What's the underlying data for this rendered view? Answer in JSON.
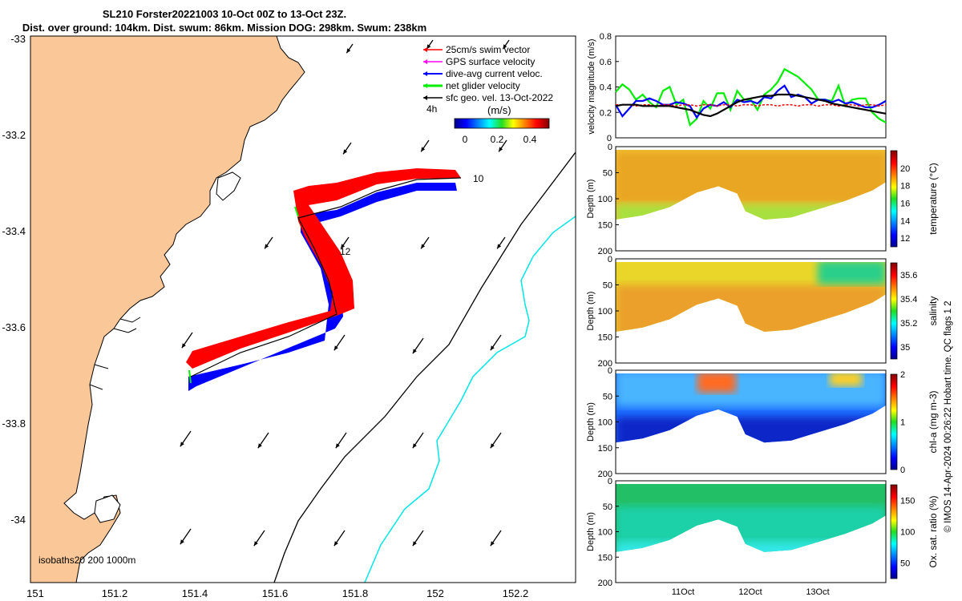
{
  "title": {
    "line1": "SL210 Forster20221003 10-Oct 00Z to 13-Oct 23Z.",
    "line2": "Dist. over ground: 104km. Dist. swum: 86km. Mission DOG: 298km. Swum: 238km"
  },
  "map": {
    "lon_ticks": [
      "151",
      "151.2",
      "151.4",
      "151.6",
      "151.8",
      "152",
      "152.2"
    ],
    "lat_ticks": [
      "-33",
      "-33.2",
      "-33.4",
      "-33.6",
      "-33.8",
      "-34"
    ],
    "legend": [
      {
        "label": "25cm/s swim vector",
        "color": "#ff0000"
      },
      {
        "label": "GPS surface velocity",
        "color": "#ff00ff"
      },
      {
        "label": "dive-avg current veloc.",
        "color": "#0000ff"
      },
      {
        "label": "net glider velocity",
        "color": "#00ee00"
      },
      {
        "label": "sfc geo. vel. 13-Oct-2022",
        "color": "#000000"
      }
    ],
    "time_step": "4h",
    "colorbar_unit": "(m/s)",
    "colorbar_ticks": [
      "0",
      "0.2",
      "0.4"
    ],
    "day_labels": [
      "10",
      "12"
    ],
    "isobath_label": "isobaths20  200  1000m"
  },
  "credit": "© IMOS 14-Apr-2024 00:26:22 Hobart time. QC flags 1  2",
  "colors": {
    "land": "#fac898",
    "track_red": "#ff0000",
    "track_blue": "#0000ff",
    "isobath_200": "#000000",
    "isobath_1000": "#00e5e5"
  },
  "chart_data": [
    {
      "type": "line",
      "ylabel": "velocity magnitude (m/s)",
      "ylim": [
        0,
        0.8
      ],
      "yticks": [
        "0",
        "0.2",
        "0.4",
        "0.6",
        "0.8"
      ],
      "x": [
        0,
        0.1,
        0.2,
        0.3,
        0.4,
        0.5,
        0.6,
        0.7,
        0.8,
        0.9,
        1.0,
        1.1,
        1.2,
        1.3,
        1.4,
        1.5,
        1.6,
        1.7,
        1.8,
        1.9,
        2.0,
        2.1,
        2.2,
        2.3,
        2.4,
        2.5,
        2.6,
        2.7,
        2.8,
        2.9,
        3.0,
        3.1,
        3.2,
        3.3,
        3.4,
        3.5,
        3.6,
        3.7,
        3.8,
        3.9,
        4.0
      ],
      "xlim": [
        0,
        4
      ],
      "series": [
        {
          "name": "net glider velocity",
          "color": "#00ee00",
          "values": [
            0.36,
            0.42,
            0.38,
            0.3,
            0.34,
            0.28,
            0.24,
            0.37,
            0.4,
            0.26,
            0.3,
            0.1,
            0.15,
            0.29,
            0.23,
            0.35,
            0.35,
            0.22,
            0.37,
            0.3,
            0.3,
            0.22,
            0.34,
            0.38,
            0.44,
            0.54,
            0.51,
            0.48,
            0.43,
            0.38,
            0.3,
            0.3,
            0.29,
            0.41,
            0.25,
            0.3,
            0.31,
            0.31,
            0.2,
            0.15,
            0.12
          ]
        },
        {
          "name": "dive-avg current veloc.",
          "color": "#0000ff",
          "values": [
            0.26,
            0.17,
            0.23,
            0.29,
            0.29,
            0.31,
            0.29,
            0.26,
            0.26,
            0.28,
            0.27,
            0.25,
            0.16,
            0.23,
            0.26,
            0.25,
            0.28,
            0.24,
            0.3,
            0.28,
            0.29,
            0.27,
            0.32,
            0.31,
            0.37,
            0.41,
            0.32,
            0.34,
            0.32,
            0.27,
            0.3,
            0.3,
            0.28,
            0.3,
            0.27,
            0.28,
            0.26,
            0.24,
            0.24,
            0.26,
            0.29
          ]
        },
        {
          "name": "25cm/s swim vector",
          "color": "#ff0000",
          "values": [
            0.26,
            0.26,
            0.26,
            0.25,
            0.26,
            0.26,
            0.25,
            0.26,
            0.26,
            0.25,
            0.26,
            0.26,
            0.25,
            0.26,
            0.26,
            0.25,
            0.26,
            0.26,
            0.25,
            0.26,
            0.26,
            0.25,
            0.26,
            0.26,
            0.25,
            0.26,
            0.26,
            0.25,
            0.26,
            0.26,
            0.25,
            0.26,
            0.26,
            0.25,
            0.26,
            0.26,
            0.25,
            0.26,
            0.26,
            0.25,
            0.26
          ]
        },
        {
          "name": "sfc geo. vel.",
          "color": "#000000",
          "values": [
            0.25,
            0.26,
            0.26,
            0.26,
            0.25,
            0.25,
            0.25,
            0.25,
            0.25,
            0.24,
            0.23,
            0.22,
            0.2,
            0.18,
            0.17,
            0.19,
            0.22,
            0.25,
            0.28,
            0.3,
            0.31,
            0.32,
            0.33,
            0.33,
            0.34,
            0.34,
            0.34,
            0.33,
            0.32,
            0.31,
            0.3,
            0.29,
            0.27,
            0.26,
            0.25,
            0.24,
            0.23,
            0.22,
            0.21,
            0.2,
            0.19
          ]
        }
      ]
    },
    {
      "type": "heatmap",
      "ylabel": "Depth (m)",
      "yticks": [
        "0",
        "50",
        "100",
        "150",
        "200"
      ],
      "cbar_label": "temperature (°C)",
      "cbar_ticks": [
        "12",
        "14",
        "16",
        "18",
        "20"
      ],
      "cbar_range": [
        11,
        22
      ]
    },
    {
      "type": "heatmap",
      "ylabel": "Depth (m)",
      "yticks": [
        "0",
        "50",
        "100",
        "150",
        "200"
      ],
      "cbar_label": "salinity",
      "cbar_ticks": [
        "35",
        "35.2",
        "35.4",
        "35.6"
      ],
      "cbar_range": [
        34.9,
        35.7
      ]
    },
    {
      "type": "heatmap",
      "ylabel": "Depth (m)",
      "yticks": [
        "0",
        "50",
        "100",
        "150",
        "200"
      ],
      "cbar_label": "chl-a (mg m-3)",
      "cbar_ticks": [
        "0",
        "1",
        "2"
      ],
      "cbar_range": [
        0,
        2
      ]
    },
    {
      "type": "heatmap",
      "ylabel": "Depth (m)",
      "yticks": [
        "0",
        "50",
        "100",
        "150",
        "200"
      ],
      "cbar_label": "Ox. sat. ratio (%)",
      "cbar_ticks": [
        "50",
        "100",
        "150"
      ],
      "cbar_range": [
        25,
        175
      ],
      "xticks": [
        "11Oct",
        "12Oct",
        "13Oct"
      ]
    }
  ]
}
